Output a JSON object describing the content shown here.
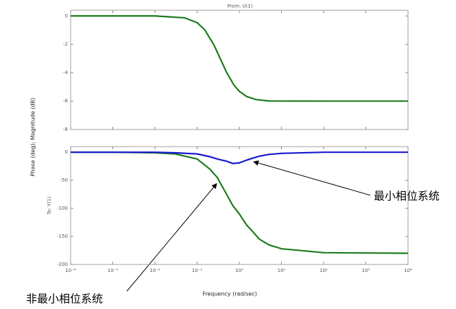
{
  "chart_data": [
    {
      "type": "line",
      "title": "From: U(1)",
      "ylabel": "Phase (deg); Magnitude (dB)",
      "log_x": true,
      "xlim": [
        0.0001,
        10000
      ],
      "ylim": [
        -8,
        0.4
      ],
      "yticks": [
        0,
        -2,
        -4,
        -6,
        -8
      ],
      "x": [
        0.0001,
        0.001,
        0.01,
        0.05,
        0.1,
        0.15,
        0.25,
        0.35,
        0.5,
        0.75,
        1,
        1.5,
        2.5,
        5,
        100,
        10000
      ],
      "series": [
        {
          "color": "#1a7a1a",
          "values": [
            0,
            0,
            0,
            -0.13,
            -0.47,
            -0.96,
            -2.04,
            -2.98,
            -3.98,
            -4.88,
            -5.31,
            -5.68,
            -5.89,
            -5.99,
            -6,
            -6
          ]
        }
      ]
    },
    {
      "type": "line",
      "ylabel": "To: Y(1)",
      "xlabel": "Frequency (rad/sec)",
      "log_x": true,
      "xlim": [
        0.0001,
        10000
      ],
      "ylim": [
        -200,
        10
      ],
      "yticks": [
        0,
        -50,
        -100,
        -150,
        -200
      ],
      "xticks": [
        {
          "value": 0.0001,
          "label": "10⁻⁴"
        },
        {
          "value": 0.001,
          "label": "10⁻³"
        },
        {
          "value": 0.01,
          "label": "10⁻²"
        },
        {
          "value": 0.1,
          "label": "10⁻¹"
        },
        {
          "value": 1,
          "label": "10⁰"
        },
        {
          "value": 10,
          "label": "10¹"
        },
        {
          "value": 100,
          "label": "10²"
        },
        {
          "value": 1000,
          "label": "10³"
        },
        {
          "value": 10000,
          "label": "10⁴"
        }
      ],
      "x": [
        0.0001,
        0.001,
        0.01,
        0.03,
        0.1,
        0.2,
        0.3,
        0.5,
        0.7,
        1,
        1.5,
        2,
        3,
        5,
        10,
        100,
        10000
      ],
      "series": [
        {
          "color": "#1a7a1a",
          "values": [
            0,
            0,
            -1,
            -3,
            -12,
            -30,
            -45,
            -75,
            -95,
            -110,
            -130,
            -140,
            -155,
            -165,
            -172,
            -179,
            -180
          ]
        },
        {
          "color": "#1515d0",
          "values": [
            0,
            0,
            0,
            -1,
            -3,
            -8,
            -12,
            -16,
            -20,
            -19,
            -14,
            -11,
            -7,
            -4,
            -2,
            0,
            0
          ]
        }
      ],
      "annotations": [
        "最小相位系统",
        "非最小相位系统"
      ]
    }
  ]
}
